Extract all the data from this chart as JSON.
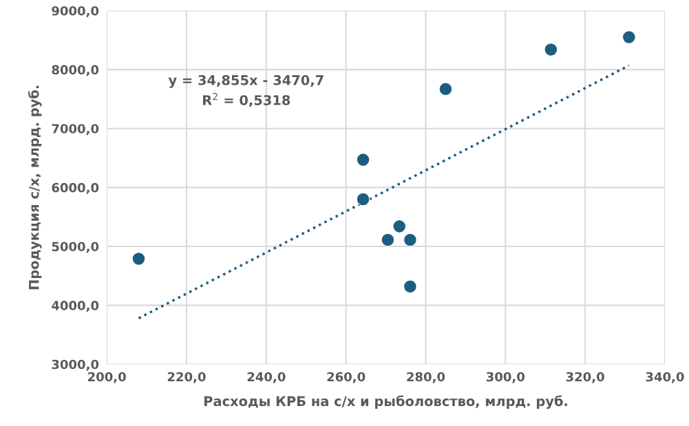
{
  "chart_data": {
    "type": "scatter",
    "xlabel": "Расходы КРБ на с/х и рыболовство, млрд. руб.",
    "ylabel": "Продукция с/х, млрд. руб.",
    "annotations": [
      "y = 34,855x - 3470,7",
      "R$^{2}$ = 0,5318"
    ],
    "series": [
      {
        "color": "#1b5e80",
        "marker": "circle",
        "x": [
          208.0,
          264.3,
          264.3,
          273.4,
          270.5,
          276.1,
          276.1,
          285.0,
          311.4,
          331.0
        ],
        "values": [
          4790,
          6470,
          5800,
          5340,
          5110,
          5110,
          4320,
          7670,
          8340,
          8550
        ]
      },
      {
        "type": "line",
        "color": "#1b5e80",
        "line_style": "dotted",
        "marker": "none",
        "x": [
          208.0,
          331.0
        ],
        "values": [
          3780,
          8070
        ]
      }
    ],
    "xlim": [
      200,
      340
    ],
    "xticks": [
      {
        "value": 200,
        "label": "200,0"
      },
      {
        "value": 220,
        "label": "220,0"
      },
      {
        "value": 240,
        "label": "240,0"
      },
      {
        "value": 260,
        "label": "260,0"
      },
      {
        "value": 280,
        "label": "280,0"
      },
      {
        "value": 300,
        "label": "300,0"
      },
      {
        "value": 320,
        "label": "320,0"
      },
      {
        "value": 340,
        "label": "340,0"
      }
    ],
    "ylim": [
      3000,
      9000
    ],
    "yticks": [
      {
        "value": 3000,
        "label": "3000,0"
      },
      {
        "value": 4000,
        "label": "4000,0"
      },
      {
        "value": 5000,
        "label": "5000,0"
      },
      {
        "value": 6000,
        "label": "6000,0"
      },
      {
        "value": 7000,
        "label": "7000,0"
      },
      {
        "value": 8000,
        "label": "8000,0"
      },
      {
        "value": 9000,
        "label": "9000,0"
      }
    ],
    "grid": true,
    "legend": false
  }
}
